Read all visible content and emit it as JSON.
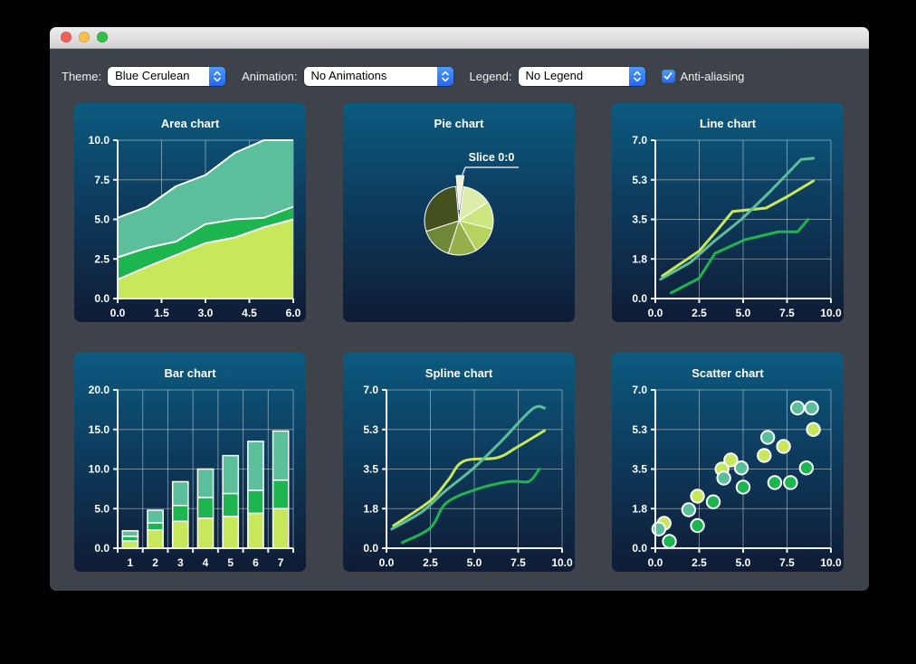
{
  "toolbar": {
    "theme_label": "Theme:",
    "theme_value": "Blue Cerulean",
    "animation_label": "Animation:",
    "animation_value": "No Animations",
    "legend_label": "Legend:",
    "legend_value": "No Legend",
    "antialiasing_label": "Anti-aliasing",
    "antialiasing_checked": true
  },
  "colors": {
    "accent_blue": "#2f73f2",
    "series_lime": "#c7e85b",
    "series_green": "#1cb54f",
    "series_teal": "#5cbf9b",
    "panel_top": "#0c5b80",
    "panel_bottom": "#0f1b34",
    "window_chrome": "#3e434b",
    "traffic_red": "#f0605b",
    "traffic_yellow": "#f6bf4f",
    "traffic_green": "#32c146"
  },
  "chart_data": [
    {
      "type": "area",
      "title": "Area chart",
      "xlim": [
        0,
        6
      ],
      "ylim": [
        0,
        10
      ],
      "x": [
        0,
        1,
        2,
        3,
        4,
        5,
        6
      ],
      "series": [
        {
          "color": "#c7e85b",
          "cum": [
            1.2,
            2.0,
            2.75,
            3.5,
            3.85,
            4.5,
            5.0
          ]
        },
        {
          "color": "#1cb54f",
          "cum": [
            2.6,
            3.2,
            3.6,
            4.7,
            5.0,
            5.1,
            5.8
          ]
        },
        {
          "color": "#5cbf9b",
          "cum": [
            5.1,
            5.8,
            7.1,
            7.8,
            9.2,
            10.0,
            10.0
          ]
        }
      ],
      "xgrid": [
        0,
        1.5,
        3,
        4.5,
        6
      ],
      "ygrid": [
        0,
        2.5,
        5,
        7.5,
        10
      ],
      "xticks": {
        "pos": [
          0,
          1.5,
          3,
          4.5,
          6
        ],
        "labels": [
          "0.0",
          "1.5",
          "3.0",
          "4.5",
          "6.0"
        ]
      },
      "yticks": {
        "pos": [
          0,
          2.5,
          5,
          7.5,
          10
        ],
        "labels": [
          "0.0",
          "2.5",
          "5.0",
          "7.5",
          "10.0"
        ]
      }
    },
    {
      "type": "pie",
      "title": "Pie chart",
      "label": "Slice 0:0",
      "slices": [
        {
          "start": -5,
          "end": 8,
          "color": "#eff3d1",
          "exploded": true,
          "labelled": true
        },
        {
          "start": 8,
          "end": 57,
          "color": "#dcedaa"
        },
        {
          "start": 57,
          "end": 104,
          "color": "#cde67f"
        },
        {
          "start": 104,
          "end": 150,
          "color": "#b5d35e"
        },
        {
          "start": 150,
          "end": 198,
          "color": "#95b04a"
        },
        {
          "start": 198,
          "end": 252,
          "color": "#6f8838"
        },
        {
          "start": 252,
          "end": 355,
          "color": "#44511f"
        }
      ]
    },
    {
      "type": "line",
      "title": "Line chart",
      "xlim": [
        0,
        10
      ],
      "ylim": [
        0,
        7
      ],
      "series": [
        {
          "color": "#c7e85b",
          "points": [
            [
              0.4,
              1.0
            ],
            [
              2.5,
              2.1
            ],
            [
              3.5,
              3.0
            ],
            [
              4.4,
              3.85
            ],
            [
              6.3,
              4.0
            ],
            [
              7.5,
              4.5
            ],
            [
              9.0,
              5.2
            ]
          ]
        },
        {
          "color": "#1cb54f",
          "points": [
            [
              0.9,
              0.25
            ],
            [
              2.5,
              0.9
            ],
            [
              3.4,
              2.0
            ],
            [
              5.1,
              2.6
            ],
            [
              7.0,
              2.95
            ],
            [
              8.1,
              2.95
            ],
            [
              8.7,
              3.5
            ]
          ]
        },
        {
          "color": "#5cbf9b",
          "points": [
            [
              0.3,
              0.85
            ],
            [
              2.0,
              1.6
            ],
            [
              3.3,
              2.5
            ],
            [
              4.9,
              3.5
            ],
            [
              6.5,
              4.7
            ],
            [
              8.3,
              6.15
            ],
            [
              9.0,
              6.2
            ]
          ]
        }
      ],
      "xgrid": [
        0,
        2.5,
        5,
        7.5,
        10
      ],
      "ygrid": [
        0,
        1.75,
        3.5,
        5.25,
        7
      ],
      "xticks": {
        "pos": [
          0,
          2.5,
          5,
          7.5,
          10
        ],
        "labels": [
          "0.0",
          "2.5",
          "5.0",
          "7.5",
          "10.0"
        ]
      },
      "yticks": {
        "pos": [
          0,
          1.75,
          3.5,
          5.25,
          7
        ],
        "labels": [
          "0.0",
          "1.8",
          "3.5",
          "5.3",
          "7.0"
        ]
      }
    },
    {
      "type": "bar",
      "title": "Bar chart",
      "xlim": [
        0,
        7
      ],
      "ylim": [
        0,
        20
      ],
      "categories": [
        "1",
        "2",
        "3",
        "4",
        "5",
        "6",
        "7"
      ],
      "series": [
        {
          "color": "#c7e85b",
          "cum": [
            0.9,
            2.3,
            3.4,
            3.8,
            4.0,
            4.4,
            5.0
          ]
        },
        {
          "color": "#1cb54f",
          "cum": [
            1.5,
            3.2,
            5.4,
            6.4,
            6.9,
            7.3,
            8.6
          ]
        },
        {
          "color": "#5cbf9b",
          "cum": [
            2.2,
            4.8,
            8.4,
            10.0,
            11.7,
            13.5,
            14.8
          ]
        }
      ],
      "xgrid": [
        0,
        1,
        2,
        3,
        4,
        5,
        6,
        7
      ],
      "ygrid": [
        0,
        5,
        10,
        15,
        20
      ],
      "xticks": {
        "pos": [
          0.5,
          1.5,
          2.5,
          3.5,
          4.5,
          5.5,
          6.5
        ],
        "labels": [
          "1",
          "2",
          "3",
          "4",
          "5",
          "6",
          "7"
        ]
      },
      "yticks": {
        "pos": [
          0,
          5,
          10,
          15,
          20
        ],
        "labels": [
          "0.0",
          "5.0",
          "10.0",
          "15.0",
          "20.0"
        ]
      }
    },
    {
      "type": "spline",
      "title": "Spline chart",
      "xlim": [
        0,
        10
      ],
      "ylim": [
        0,
        7
      ],
      "series": [
        {
          "color": "#c7e85b",
          "points": [
            [
              0.4,
              1.0
            ],
            [
              2.5,
              2.1
            ],
            [
              3.5,
              3.0
            ],
            [
              4.4,
              3.85
            ],
            [
              6.3,
              4.0
            ],
            [
              7.5,
              4.5
            ],
            [
              9.0,
              5.2
            ]
          ]
        },
        {
          "color": "#1cb54f",
          "points": [
            [
              0.9,
              0.25
            ],
            [
              2.5,
              0.9
            ],
            [
              3.4,
              2.0
            ],
            [
              5.1,
              2.6
            ],
            [
              7.0,
              2.95
            ],
            [
              8.1,
              2.95
            ],
            [
              8.7,
              3.5
            ]
          ]
        },
        {
          "color": "#5cbf9b",
          "points": [
            [
              0.3,
              0.85
            ],
            [
              2.0,
              1.6
            ],
            [
              3.3,
              2.5
            ],
            [
              4.9,
              3.5
            ],
            [
              6.5,
              4.7
            ],
            [
              8.3,
              6.15
            ],
            [
              9.0,
              6.2
            ]
          ]
        }
      ],
      "xgrid": [
        0,
        2.5,
        5,
        7.5,
        10
      ],
      "ygrid": [
        0,
        1.75,
        3.5,
        5.25,
        7
      ],
      "xticks": {
        "pos": [
          0,
          2.5,
          5,
          7.5,
          10
        ],
        "labels": [
          "0.0",
          "2.5",
          "5.0",
          "7.5",
          "10.0"
        ]
      },
      "yticks": {
        "pos": [
          0,
          1.75,
          3.5,
          5.25,
          7
        ],
        "labels": [
          "0.0",
          "1.8",
          "3.5",
          "5.3",
          "7.0"
        ]
      }
    },
    {
      "type": "scatter",
      "title": "Scatter chart",
      "xlim": [
        0,
        10
      ],
      "ylim": [
        0,
        7
      ],
      "series": [
        {
          "color": "#c7e85b",
          "points": [
            [
              0.5,
              1.1
            ],
            [
              2.4,
              2.3
            ],
            [
              3.8,
              3.5
            ],
            [
              4.3,
              3.9
            ],
            [
              6.2,
              4.1
            ],
            [
              7.3,
              4.5
            ],
            [
              9.0,
              5.25
            ]
          ]
        },
        {
          "color": "#1cb54f",
          "points": [
            [
              0.8,
              0.3
            ],
            [
              2.4,
              1.0
            ],
            [
              3.3,
              2.05
            ],
            [
              5.0,
              2.7
            ],
            [
              6.8,
              2.9
            ],
            [
              7.7,
              2.9
            ],
            [
              8.6,
              3.55
            ]
          ]
        },
        {
          "color": "#5cbf9b",
          "points": [
            [
              0.2,
              0.85
            ],
            [
              1.9,
              1.7
            ],
            [
              3.9,
              3.1
            ],
            [
              4.9,
              3.55
            ],
            [
              6.4,
              4.9
            ],
            [
              8.1,
              6.2
            ],
            [
              8.9,
              6.2
            ]
          ]
        }
      ],
      "xgrid": [
        0,
        2.5,
        5,
        7.5,
        10
      ],
      "ygrid": [
        0,
        1.75,
        3.5,
        5.25,
        7
      ],
      "xticks": {
        "pos": [
          0,
          2.5,
          5,
          7.5,
          10
        ],
        "labels": [
          "0.0",
          "2.5",
          "5.0",
          "7.5",
          "10.0"
        ]
      },
      "yticks": {
        "pos": [
          0,
          1.75,
          3.5,
          5.25,
          7
        ],
        "labels": [
          "0.0",
          "1.8",
          "3.5",
          "5.3",
          "7.0"
        ]
      }
    }
  ]
}
